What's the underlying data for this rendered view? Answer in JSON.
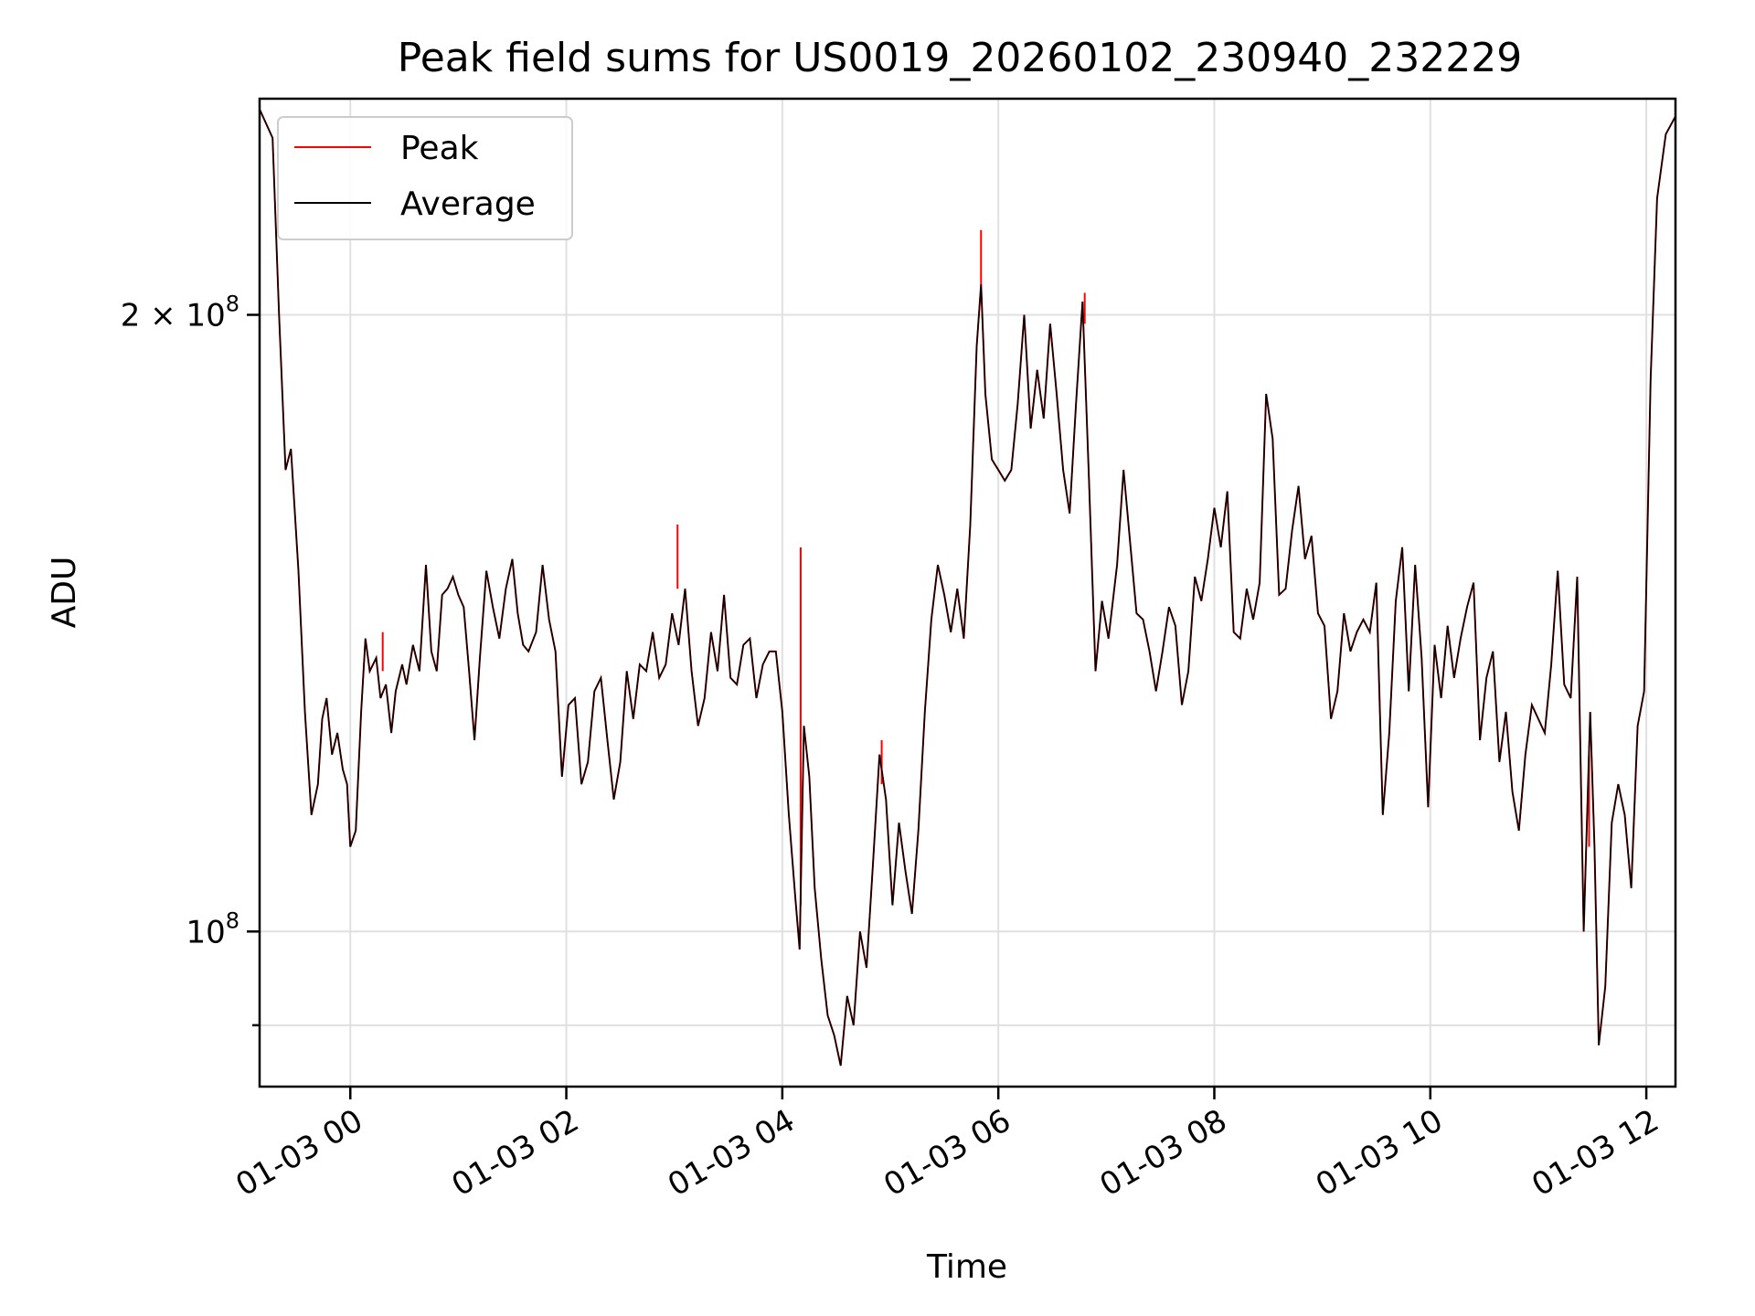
{
  "chart_data": {
    "type": "line",
    "title": "Peak field sums for US0019_20260102_230940_232229",
    "xlabel": "Time",
    "ylabel": "ADU",
    "yscale": "log",
    "xlim": [
      -0.84,
      12.27
    ],
    "ylim": [
      84000000,
      255000000
    ],
    "x_tick_values": [
      0,
      2,
      4,
      6,
      8,
      10,
      12
    ],
    "x_tick_labels": [
      "01-03 00",
      "01-03 02",
      "01-03 04",
      "01-03 06",
      "01-03 08",
      "01-03 10",
      "01-03 12"
    ],
    "y_major_ticks": [
      {
        "value": 100000000,
        "mantissa": "",
        "base": "10",
        "exponent": "8"
      },
      {
        "value": 200000000,
        "mantissa": "2 × ",
        "base": "10",
        "exponent": "8"
      }
    ],
    "y_minor_ticks": [
      90000000
    ],
    "legend": {
      "position": "top-left",
      "entries": [
        "Peak",
        "Average"
      ]
    },
    "colors": {
      "peak": "#ff0000",
      "average": "#000000"
    },
    "series": [
      {
        "name": "Average",
        "color": "#000000",
        "points": [
          [
            -0.84,
            252
          ],
          [
            -0.72,
            244
          ],
          [
            -0.66,
            200
          ],
          [
            -0.6,
            168
          ],
          [
            -0.55,
            172
          ],
          [
            -0.48,
            150
          ],
          [
            -0.42,
            128
          ],
          [
            -0.36,
            114
          ],
          [
            -0.3,
            118
          ],
          [
            -0.26,
            127
          ],
          [
            -0.22,
            130
          ],
          [
            -0.17,
            122
          ],
          [
            -0.12,
            125
          ],
          [
            -0.07,
            120
          ],
          [
            -0.03,
            118
          ],
          [
            0.0,
            110
          ],
          [
            0.05,
            112
          ],
          [
            0.1,
            128
          ],
          [
            0.14,
            139
          ],
          [
            0.18,
            134
          ],
          [
            0.24,
            136
          ],
          [
            0.28,
            130
          ],
          [
            0.33,
            132
          ],
          [
            0.38,
            125
          ],
          [
            0.42,
            131
          ],
          [
            0.48,
            135
          ],
          [
            0.52,
            132
          ],
          [
            0.58,
            138
          ],
          [
            0.64,
            134
          ],
          [
            0.7,
            151
          ],
          [
            0.75,
            137
          ],
          [
            0.8,
            134
          ],
          [
            0.85,
            146
          ],
          [
            0.9,
            147
          ],
          [
            0.95,
            149
          ],
          [
            1.0,
            146
          ],
          [
            1.05,
            144
          ],
          [
            1.1,
            134
          ],
          [
            1.15,
            124
          ],
          [
            1.2,
            136
          ],
          [
            1.26,
            150
          ],
          [
            1.32,
            144
          ],
          [
            1.38,
            139
          ],
          [
            1.44,
            147
          ],
          [
            1.5,
            152
          ],
          [
            1.55,
            143
          ],
          [
            1.6,
            138
          ],
          [
            1.65,
            137
          ],
          [
            1.72,
            140
          ],
          [
            1.78,
            151
          ],
          [
            1.84,
            142
          ],
          [
            1.9,
            137
          ],
          [
            1.96,
            119
          ],
          [
            2.02,
            129
          ],
          [
            2.08,
            130
          ],
          [
            2.14,
            118
          ],
          [
            2.2,
            121
          ],
          [
            2.26,
            131
          ],
          [
            2.32,
            133
          ],
          [
            2.38,
            124
          ],
          [
            2.44,
            116
          ],
          [
            2.5,
            121
          ],
          [
            2.56,
            134
          ],
          [
            2.62,
            127
          ],
          [
            2.68,
            135
          ],
          [
            2.74,
            134
          ],
          [
            2.8,
            140
          ],
          [
            2.86,
            133
          ],
          [
            2.92,
            135
          ],
          [
            2.98,
            143
          ],
          [
            3.04,
            138
          ],
          [
            3.1,
            147
          ],
          [
            3.16,
            134
          ],
          [
            3.22,
            126
          ],
          [
            3.28,
            130
          ],
          [
            3.34,
            140
          ],
          [
            3.4,
            134
          ],
          [
            3.46,
            146
          ],
          [
            3.52,
            133
          ],
          [
            3.58,
            132
          ],
          [
            3.64,
            138
          ],
          [
            3.7,
            139
          ],
          [
            3.76,
            130
          ],
          [
            3.82,
            135
          ],
          [
            3.88,
            137
          ],
          [
            3.94,
            137
          ],
          [
            4.0,
            128
          ],
          [
            4.06,
            114
          ],
          [
            4.12,
            104
          ],
          [
            4.16,
            98
          ],
          [
            4.2,
            126
          ],
          [
            4.25,
            119
          ],
          [
            4.3,
            105
          ],
          [
            4.36,
            97
          ],
          [
            4.42,
            91
          ],
          [
            4.48,
            89
          ],
          [
            4.54,
            86
          ],
          [
            4.6,
            93
          ],
          [
            4.66,
            90
          ],
          [
            4.72,
            100
          ],
          [
            4.78,
            96
          ],
          [
            4.84,
            108
          ],
          [
            4.9,
            122
          ],
          [
            4.96,
            116
          ],
          [
            5.02,
            103
          ],
          [
            5.08,
            113
          ],
          [
            5.14,
            107
          ],
          [
            5.2,
            102
          ],
          [
            5.26,
            112
          ],
          [
            5.32,
            128
          ],
          [
            5.38,
            142
          ],
          [
            5.44,
            151
          ],
          [
            5.5,
            146
          ],
          [
            5.56,
            140
          ],
          [
            5.62,
            147
          ],
          [
            5.68,
            139
          ],
          [
            5.74,
            158
          ],
          [
            5.8,
            193
          ],
          [
            5.84,
            207
          ],
          [
            5.88,
            183
          ],
          [
            5.94,
            170
          ],
          [
            6.0,
            168
          ],
          [
            6.06,
            166
          ],
          [
            6.12,
            168
          ],
          [
            6.18,
            181
          ],
          [
            6.24,
            200
          ],
          [
            6.3,
            176
          ],
          [
            6.36,
            188
          ],
          [
            6.42,
            178
          ],
          [
            6.48,
            198
          ],
          [
            6.54,
            183
          ],
          [
            6.6,
            168
          ],
          [
            6.66,
            160
          ],
          [
            6.72,
            181
          ],
          [
            6.78,
            203
          ],
          [
            6.84,
            166
          ],
          [
            6.9,
            134
          ],
          [
            6.96,
            145
          ],
          [
            7.02,
            139
          ],
          [
            7.1,
            151
          ],
          [
            7.16,
            168
          ],
          [
            7.22,
            155
          ],
          [
            7.28,
            143
          ],
          [
            7.34,
            142
          ],
          [
            7.4,
            137
          ],
          [
            7.46,
            131
          ],
          [
            7.52,
            137
          ],
          [
            7.58,
            144
          ],
          [
            7.64,
            141
          ],
          [
            7.7,
            129
          ],
          [
            7.76,
            134
          ],
          [
            7.82,
            149
          ],
          [
            7.88,
            145
          ],
          [
            7.94,
            152
          ],
          [
            8.0,
            161
          ],
          [
            8.06,
            154
          ],
          [
            8.12,
            164
          ],
          [
            8.18,
            140
          ],
          [
            8.24,
            139
          ],
          [
            8.3,
            147
          ],
          [
            8.36,
            142
          ],
          [
            8.42,
            148
          ],
          [
            8.48,
            183
          ],
          [
            8.54,
            174
          ],
          [
            8.6,
            146
          ],
          [
            8.66,
            147
          ],
          [
            8.72,
            157
          ],
          [
            8.78,
            165
          ],
          [
            8.84,
            152
          ],
          [
            8.9,
            156
          ],
          [
            8.96,
            143
          ],
          [
            9.02,
            141
          ],
          [
            9.08,
            127
          ],
          [
            9.14,
            131
          ],
          [
            9.2,
            143
          ],
          [
            9.26,
            137
          ],
          [
            9.32,
            140
          ],
          [
            9.38,
            142
          ],
          [
            9.44,
            140
          ],
          [
            9.5,
            148
          ],
          [
            9.56,
            114
          ],
          [
            9.62,
            125
          ],
          [
            9.68,
            145
          ],
          [
            9.74,
            154
          ],
          [
            9.8,
            131
          ],
          [
            9.86,
            151
          ],
          [
            9.92,
            136
          ],
          [
            9.98,
            115
          ],
          [
            10.04,
            138
          ],
          [
            10.1,
            130
          ],
          [
            10.16,
            141
          ],
          [
            10.22,
            133
          ],
          [
            10.28,
            139
          ],
          [
            10.34,
            144
          ],
          [
            10.4,
            148
          ],
          [
            10.46,
            124
          ],
          [
            10.52,
            133
          ],
          [
            10.58,
            137
          ],
          [
            10.64,
            121
          ],
          [
            10.7,
            128
          ],
          [
            10.76,
            117
          ],
          [
            10.82,
            112
          ],
          [
            10.88,
            122
          ],
          [
            10.94,
            129
          ],
          [
            11.0,
            127
          ],
          [
            11.06,
            125
          ],
          [
            11.12,
            135
          ],
          [
            11.18,
            150
          ],
          [
            11.24,
            132
          ],
          [
            11.3,
            130
          ],
          [
            11.36,
            149
          ],
          [
            11.42,
            100
          ],
          [
            11.48,
            128
          ],
          [
            11.52,
            110
          ],
          [
            11.56,
            88
          ],
          [
            11.62,
            94
          ],
          [
            11.68,
            113
          ],
          [
            11.74,
            118
          ],
          [
            11.8,
            114
          ],
          [
            11.86,
            105
          ],
          [
            11.92,
            126
          ],
          [
            11.98,
            131
          ],
          [
            12.04,
            186
          ],
          [
            12.1,
            228
          ],
          [
            12.18,
            245
          ],
          [
            12.27,
            250
          ]
        ]
      },
      {
        "name": "Peak",
        "color": "#ff0000",
        "note": "Peak sums overlap the Average curve almost everywhere; visible excursions listed as spikes",
        "spikes": [
          [
            0.3,
            134,
            140
          ],
          [
            3.03,
            147,
            158
          ],
          [
            4.17,
            103,
            154
          ],
          [
            4.92,
            118,
            124
          ],
          [
            5.84,
            207,
            220
          ],
          [
            6.8,
            198,
            205
          ],
          [
            11.47,
            110,
            122
          ]
        ]
      }
    ]
  }
}
